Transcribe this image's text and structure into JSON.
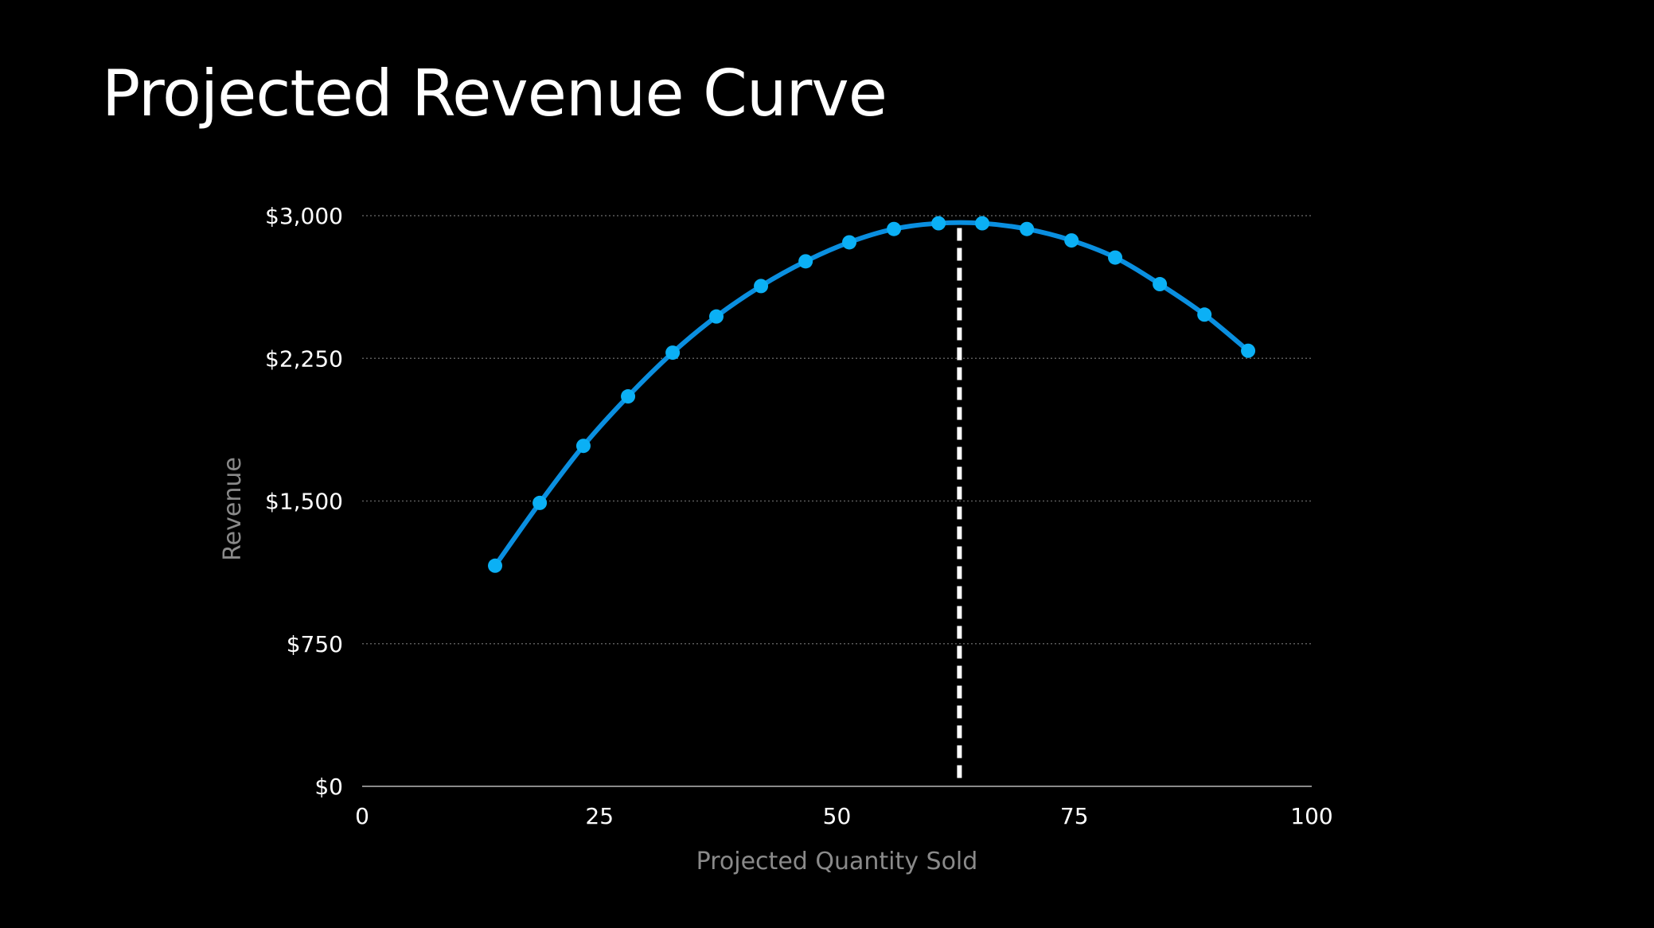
{
  "slide": {
    "title": "Projected Revenue Curve"
  },
  "colors": {
    "background": "#000000",
    "series": "#0a8fe0",
    "point": "#0bb0f5",
    "grid": "#5a5a5a",
    "axis": "#8a8a8a",
    "marker": "#ffffff"
  },
  "chart_data": {
    "type": "line",
    "xlabel": "Projected Quantity Sold",
    "ylabel": "Revenue",
    "xlim": [
      0,
      100
    ],
    "ylim": [
      0,
      3000
    ],
    "x_ticks": [
      0,
      25,
      50,
      75,
      100
    ],
    "x_tick_labels": [
      "0",
      "25",
      "50",
      "75",
      "100"
    ],
    "y_ticks": [
      0,
      750,
      1500,
      2250,
      3000
    ],
    "y_tick_labels": [
      "$0",
      "$750",
      "$1,500",
      "$2,250",
      "$3,000"
    ],
    "grid": "horizontal dotted",
    "series": [
      {
        "x": [
          14,
          18.7,
          23.3,
          28,
          32.7,
          37.3,
          42,
          46.7,
          51.3,
          56,
          60.7,
          65.3,
          70,
          74.7,
          79.3,
          84,
          88.7,
          93.3
        ],
        "y": [
          1160,
          1490,
          1790,
          2050,
          2280,
          2470,
          2630,
          2760,
          2860,
          2930,
          2960,
          2960,
          2930,
          2870,
          2780,
          2640,
          2480,
          2290
        ]
      }
    ],
    "vertical_marker": {
      "x": 62.9,
      "style": "dashed"
    }
  }
}
